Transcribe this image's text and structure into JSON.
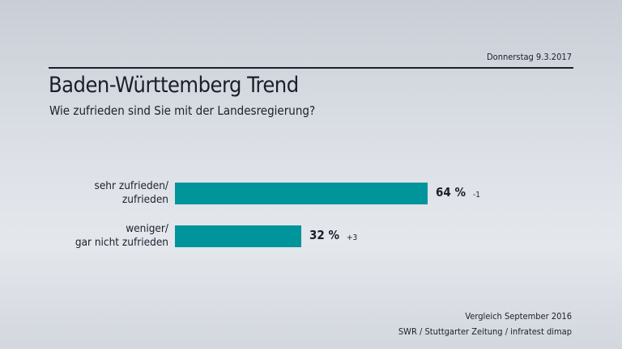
{
  "header": {
    "date": "Donnerstag 9.3.2017",
    "title": "Baden-Württemberg Trend",
    "subtitle": "Wie zufrieden sind Sie mit der Landesregierung?"
  },
  "chart_data": {
    "type": "bar",
    "orientation": "horizontal",
    "title": "Baden-Württemberg Trend",
    "subtitle": "Wie zufrieden sind Sie mit der Landesregierung?",
    "categories": [
      [
        "sehr zufrieden/",
        "zufrieden"
      ],
      [
        "weniger/",
        "gar nicht zufrieden"
      ]
    ],
    "values": [
      64,
      32
    ],
    "value_labels": [
      "64 %",
      "32 %"
    ],
    "changes": [
      "-1",
      "+3"
    ],
    "unit": "%",
    "xlim": [
      0,
      100
    ],
    "grid": false,
    "bar_color": "#00949b"
  },
  "footer": {
    "comparison": "Vergleich September 2016",
    "source": "SWR / Stuttgarter Zeitung / infratest dimap"
  }
}
